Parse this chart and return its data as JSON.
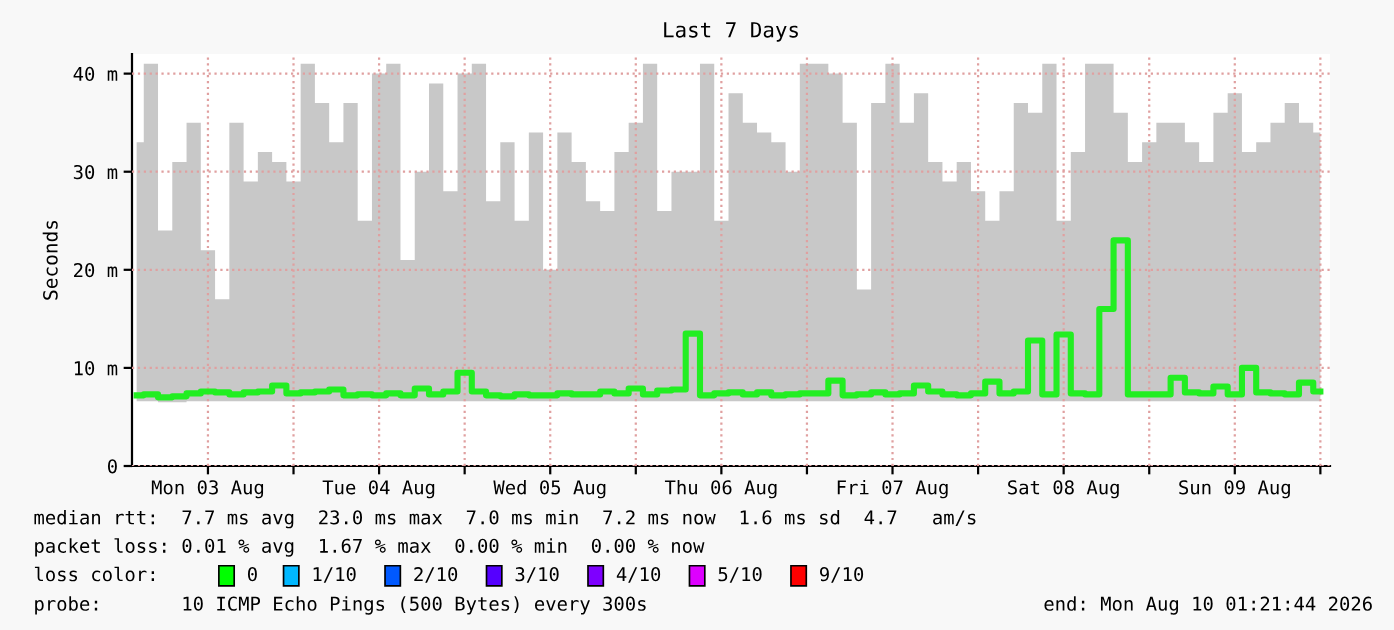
{
  "chart_data": {
    "type": "step",
    "title": "Last 7 Days",
    "ylabel": "Seconds",
    "x": [
      "2026-08-03T02:00",
      "2026-08-03T04:00",
      "2026-08-03T06:00",
      "2026-08-03T08:00",
      "2026-08-03T10:00",
      "2026-08-03T12:00",
      "2026-08-03T14:00",
      "2026-08-03T16:00",
      "2026-08-03T18:00",
      "2026-08-03T20:00",
      "2026-08-03T22:00",
      "2026-08-04T00:00",
      "2026-08-04T02:00",
      "2026-08-04T04:00",
      "2026-08-04T06:00",
      "2026-08-04T08:00",
      "2026-08-04T10:00",
      "2026-08-04T12:00",
      "2026-08-04T14:00",
      "2026-08-04T16:00",
      "2026-08-04T18:00",
      "2026-08-04T20:00",
      "2026-08-04T22:00",
      "2026-08-05T00:00",
      "2026-08-05T02:00",
      "2026-08-05T04:00",
      "2026-08-05T06:00",
      "2026-08-05T08:00",
      "2026-08-05T10:00",
      "2026-08-05T12:00",
      "2026-08-05T14:00",
      "2026-08-05T16:00",
      "2026-08-05T18:00",
      "2026-08-05T20:00",
      "2026-08-05T22:00",
      "2026-08-06T00:00",
      "2026-08-06T02:00",
      "2026-08-06T04:00",
      "2026-08-06T06:00",
      "2026-08-06T08:00",
      "2026-08-06T10:00",
      "2026-08-06T12:00",
      "2026-08-06T14:00",
      "2026-08-06T16:00",
      "2026-08-06T18:00",
      "2026-08-06T20:00",
      "2026-08-06T22:00",
      "2026-08-07T00:00",
      "2026-08-07T02:00",
      "2026-08-07T04:00",
      "2026-08-07T06:00",
      "2026-08-07T08:00",
      "2026-08-07T10:00",
      "2026-08-07T12:00",
      "2026-08-07T14:00",
      "2026-08-07T16:00",
      "2026-08-07T18:00",
      "2026-08-07T20:00",
      "2026-08-07T22:00",
      "2026-08-08T00:00",
      "2026-08-08T02:00",
      "2026-08-08T04:00",
      "2026-08-08T06:00",
      "2026-08-08T08:00",
      "2026-08-08T10:00",
      "2026-08-08T12:00",
      "2026-08-08T14:00",
      "2026-08-08T16:00",
      "2026-08-08T18:00",
      "2026-08-08T20:00",
      "2026-08-08T22:00",
      "2026-08-09T00:00",
      "2026-08-09T02:00",
      "2026-08-09T04:00",
      "2026-08-09T06:00",
      "2026-08-09T08:00",
      "2026-08-09T10:00",
      "2026-08-09T12:00",
      "2026-08-09T14:00",
      "2026-08-09T16:00",
      "2026-08-09T18:00",
      "2026-08-09T20:00",
      "2026-08-09T22:00",
      "2026-08-10T00:00"
    ],
    "series": [
      {
        "color": "#22ee22",
        "values": [
          7.2,
          7.3,
          7.0,
          7.1,
          7.4,
          7.6,
          7.5,
          7.3,
          7.5,
          7.6,
          8.2,
          7.4,
          7.5,
          7.6,
          7.8,
          7.2,
          7.3,
          7.2,
          7.4,
          7.2,
          7.9,
          7.3,
          7.6,
          9.5,
          7.6,
          7.2,
          7.1,
          7.3,
          7.2,
          7.2,
          7.4,
          7.3,
          7.3,
          7.6,
          7.4,
          7.9,
          7.3,
          7.7,
          7.8,
          13.5,
          7.2,
          7.4,
          7.5,
          7.3,
          7.5,
          7.2,
          7.3,
          7.4,
          7.4,
          8.7,
          7.2,
          7.3,
          7.5,
          7.3,
          7.4,
          8.2,
          7.6,
          7.3,
          7.2,
          7.4,
          8.6,
          7.4,
          7.6,
          12.8,
          7.3,
          13.4,
          7.4,
          7.3,
          16.0,
          23.0,
          7.3,
          7.3,
          7.3,
          9.0,
          7.5,
          7.4,
          8.1,
          7.3,
          10.0,
          7.5,
          7.4,
          7.3,
          8.5,
          7.6
        ],
        "lower": [
          6.6,
          6.6,
          6.5,
          6.5,
          6.6,
          6.6,
          6.6,
          6.6,
          6.6,
          6.6,
          6.6,
          6.6,
          6.6,
          6.6,
          6.6,
          6.6,
          6.6,
          6.6,
          6.6,
          6.6,
          6.6,
          6.6,
          6.6,
          6.6,
          6.6,
          6.6,
          6.6,
          6.6,
          6.6,
          6.6,
          6.6,
          6.6,
          6.6,
          6.6,
          6.6,
          6.6,
          6.6,
          6.6,
          6.6,
          6.6,
          6.6,
          6.6,
          6.6,
          6.6,
          6.6,
          6.6,
          6.6,
          6.6,
          6.6,
          6.6,
          6.6,
          6.6,
          6.6,
          6.6,
          6.6,
          6.6,
          6.6,
          6.6,
          6.6,
          6.6,
          6.6,
          6.6,
          6.6,
          6.6,
          6.6,
          6.6,
          6.6,
          6.6,
          6.6,
          6.6,
          6.6,
          6.6,
          6.6,
          6.6,
          6.6,
          6.6,
          6.6,
          6.6,
          6.6,
          6.6,
          6.6,
          6.6,
          6.6,
          6.6
        ],
        "upper": [
          33,
          41,
          24,
          31,
          35,
          22,
          17,
          35,
          29,
          32,
          31,
          29,
          41,
          37,
          33,
          37,
          25,
          40,
          41,
          21,
          30,
          39,
          28,
          40,
          41,
          27,
          33,
          25,
          34,
          20,
          34,
          31,
          27,
          26,
          32,
          35,
          41,
          26,
          30,
          30,
          41,
          25,
          38,
          35,
          34,
          33,
          30,
          41,
          41,
          40,
          35,
          18,
          37,
          41,
          35,
          38,
          31,
          29,
          31,
          28,
          25,
          28,
          37,
          36,
          41,
          25,
          32,
          41,
          41,
          36,
          31,
          33,
          35,
          35,
          33,
          31,
          36,
          38,
          32,
          33,
          35,
          37,
          35,
          34
        ]
      }
    ],
    "xlim": [
      "2026-08-03T01:21",
      "2026-08-10T01:21"
    ],
    "xticks": [
      {
        "value": "2026-08-03T12:00",
        "label": "Mon 03 Aug"
      },
      {
        "value": "2026-08-04T00:00",
        "label": null
      },
      {
        "value": "2026-08-04T12:00",
        "label": "Tue 04 Aug"
      },
      {
        "value": "2026-08-05T00:00",
        "label": null
      },
      {
        "value": "2026-08-05T12:00",
        "label": "Wed 05 Aug"
      },
      {
        "value": "2026-08-06T00:00",
        "label": null
      },
      {
        "value": "2026-08-06T12:00",
        "label": "Thu 06 Aug"
      },
      {
        "value": "2026-08-07T00:00",
        "label": null
      },
      {
        "value": "2026-08-07T12:00",
        "label": "Fri 07 Aug"
      },
      {
        "value": "2026-08-08T00:00",
        "label": null
      },
      {
        "value": "2026-08-08T12:00",
        "label": "Sat 08 Aug"
      },
      {
        "value": "2026-08-09T00:00",
        "label": null
      },
      {
        "value": "2026-08-09T12:00",
        "label": "Sun 09 Aug"
      },
      {
        "value": "2026-08-10T00:00",
        "label": null
      }
    ],
    "ylim": [
      0,
      42
    ],
    "yticks": [
      0,
      {
        "value": 10,
        "label": "10 m"
      },
      {
        "value": 20,
        "label": "20 m"
      },
      {
        "value": 30,
        "label": "30 m"
      },
      {
        "value": 40,
        "label": "40 m"
      }
    ],
    "grid": true,
    "annotations": [
      "median rtt:  7.7 ms avg  23.0 ms max  7.0 ms min  7.2 ms now  1.6 ms sd  4.7   am/s",
      "packet loss: 0.01 % avg  1.67 % max  0.00 % min  0.00 % now",
      "loss color:",
      "0",
      "1/10",
      "2/10",
      "3/10",
      "4/10",
      "5/10",
      "9/10",
      "probe:       10 ICMP Echo Pings (500 Bytes) every 300s",
      "end: Mon Aug 10 01:21:44 2026"
    ]
  }
}
